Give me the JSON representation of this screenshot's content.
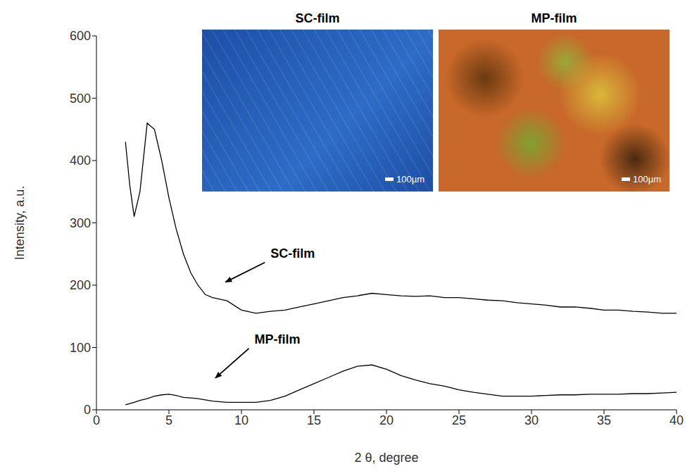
{
  "chart_data": {
    "type": "line",
    "xlabel": "2 θ, degree",
    "ylabel": "Intensity, a.u.",
    "x": [
      2,
      2.3,
      2.6,
      3,
      3.5,
      4,
      4.5,
      5,
      5.5,
      6,
      6.5,
      7,
      7.5,
      8,
      9,
      10,
      11,
      12,
      13,
      14,
      15,
      16,
      17,
      18,
      19,
      20,
      21,
      22,
      23,
      24,
      25,
      26,
      27,
      28,
      29,
      30,
      31,
      32,
      33,
      34,
      35,
      36,
      37,
      38,
      39,
      40
    ],
    "series": [
      {
        "name": "SC-film",
        "color": "#000000",
        "values": [
          430,
          360,
          310,
          350,
          460,
          450,
          400,
          340,
          290,
          250,
          220,
          200,
          185,
          180,
          175,
          160,
          155,
          158,
          160,
          165,
          170,
          175,
          180,
          183,
          187,
          185,
          183,
          182,
          183,
          180,
          180,
          178,
          176,
          175,
          172,
          170,
          168,
          165,
          165,
          163,
          160,
          160,
          158,
          157,
          155,
          155
        ]
      },
      {
        "name": "MP-film",
        "color": "#000000",
        "values": [
          8,
          10,
          12,
          15,
          18,
          22,
          24,
          25,
          23,
          20,
          19,
          18,
          16,
          14,
          12,
          12,
          12,
          15,
          22,
          32,
          42,
          52,
          62,
          70,
          72,
          65,
          55,
          48,
          42,
          38,
          32,
          28,
          25,
          22,
          22,
          22,
          23,
          24,
          24,
          25,
          25,
          25,
          26,
          26,
          27,
          28
        ]
      }
    ],
    "xlim": [
      0,
      40
    ],
    "xticks": [
      0,
      5,
      10,
      15,
      20,
      25,
      30,
      35,
      40
    ],
    "ylim": [
      0,
      600
    ],
    "yticks": [
      0,
      100,
      200,
      300,
      400,
      500,
      600
    ],
    "grid": false,
    "annotations": [
      {
        "text": "SC-film",
        "x": 12,
        "y": 250,
        "xy": [
          8.9,
          205
        ]
      },
      {
        "text": "MP-film",
        "x": 10.9,
        "y": 112,
        "xy": [
          8.2,
          51
        ]
      }
    ],
    "insets": [
      {
        "title": "SC-film",
        "scale": "100µm",
        "color": "#1d4fa6"
      },
      {
        "title": "MP-film",
        "scale": "100µm",
        "color": "#c8682a"
      }
    ]
  }
}
